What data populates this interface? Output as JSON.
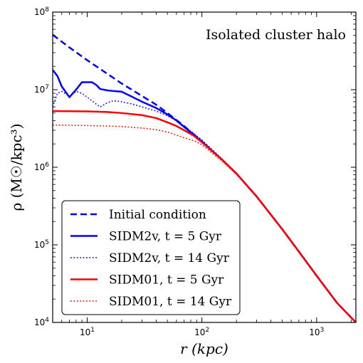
{
  "chart_data": {
    "type": "line",
    "annotation": "Isolated cluster halo",
    "xlabel": "r (kpc)",
    "ylabel": "ρ (M☉/kpc³)",
    "x_scale": "log",
    "y_scale": "log",
    "xlim": [
      5,
      2200
    ],
    "ylim": [
      10000,
      100000000
    ],
    "x_ticks": [
      {
        "value": 10,
        "base": "10",
        "exp": "1"
      },
      {
        "value": 100,
        "base": "10",
        "exp": "2"
      },
      {
        "value": 1000,
        "base": "10",
        "exp": "3"
      }
    ],
    "y_ticks": [
      {
        "value": 10000,
        "base": "10",
        "exp": "4"
      },
      {
        "value": 100000,
        "base": "10",
        "exp": "5"
      },
      {
        "value": 1000000,
        "base": "10",
        "exp": "6"
      },
      {
        "value": 10000000,
        "base": "10",
        "exp": "7"
      },
      {
        "value": 100000000,
        "base": "10",
        "exp": "8"
      }
    ],
    "grid": false,
    "legend_position": "bottom-left",
    "series": [
      {
        "name": "Initial condition",
        "color": "#0000ff",
        "style": "dashed",
        "x": [
          5,
          7,
          10,
          15,
          20,
          30,
          40,
          50,
          70,
          100,
          150,
          200,
          300,
          500,
          700,
          1000,
          1500,
          2200
        ],
        "y": [
          51000000,
          35000000,
          24000000,
          16000000,
          12000000,
          8300000,
          6400000,
          5000000,
          3400000,
          2150000,
          1250000,
          830000,
          420000,
          160000,
          82000,
          40000,
          18000,
          10000
        ]
      },
      {
        "name": "SIDM2v, t = 5 Gyr",
        "color": "#0000ff",
        "style": "solid",
        "x": [
          5,
          5.5,
          6,
          7,
          8,
          9,
          10,
          11,
          12,
          13,
          15,
          17,
          20,
          25,
          30,
          40,
          50,
          60,
          70,
          100,
          150,
          200,
          300,
          500,
          700,
          1000,
          1500,
          2200
        ],
        "y": [
          18000000,
          15000000,
          11000000,
          8000000,
          10000000,
          12500000,
          12500000,
          12500000,
          11500000,
          10200000,
          9800000,
          9600000,
          9400000,
          8000000,
          7000000,
          5800000,
          4800000,
          4000000,
          3300000,
          2150000,
          1250000,
          830000,
          420000,
          160000,
          82000,
          40000,
          18000,
          10000
        ]
      },
      {
        "name": "SIDM2v, t = 14 Gyr",
        "color": "#0000ff",
        "style": "dotted",
        "x": [
          5,
          5.5,
          6,
          7,
          8,
          9,
          10,
          11,
          12,
          13,
          15,
          17,
          20,
          25,
          30,
          40,
          50,
          60,
          70,
          100,
          150,
          200,
          300,
          500,
          700,
          1000,
          1500,
          2200
        ],
        "y": [
          6000000,
          9000000,
          9500000,
          8200000,
          9500000,
          9000000,
          8000000,
          7200000,
          6500000,
          6000000,
          6800000,
          7200000,
          7000000,
          6500000,
          6000000,
          5300000,
          4600000,
          4000000,
          3400000,
          2250000,
          1280000,
          840000,
          425000,
          162000,
          83000,
          40500,
          18200,
          10000
        ]
      },
      {
        "name": "SIDM01, t = 5 Gyr",
        "color": "#ff0000",
        "style": "solid",
        "x": [
          5,
          7,
          10,
          15,
          20,
          30,
          40,
          50,
          60,
          70,
          85,
          100,
          150,
          200,
          300,
          500,
          700,
          1000,
          1500,
          2200
        ],
        "y": [
          5300000,
          5280000,
          5250000,
          5150000,
          5000000,
          4700000,
          4300000,
          3800000,
          3400000,
          3000000,
          2550000,
          2100000,
          1250000,
          830000,
          420000,
          160000,
          82000,
          40000,
          18000,
          10000
        ]
      },
      {
        "name": "SIDM01, t = 14 Gyr",
        "color": "#ff0000",
        "style": "dotted",
        "x": [
          5,
          7,
          10,
          15,
          20,
          30,
          40,
          50,
          60,
          70,
          85,
          100,
          150,
          200,
          300,
          500,
          700,
          1000,
          1500,
          2200
        ],
        "y": [
          3500000,
          3480000,
          3450000,
          3400000,
          3350000,
          3200000,
          3050000,
          2850000,
          2600000,
          2400000,
          2200000,
          1950000,
          1200000,
          810000,
          415000,
          158000,
          81000,
          39500,
          17900,
          10000
        ]
      }
    ]
  }
}
